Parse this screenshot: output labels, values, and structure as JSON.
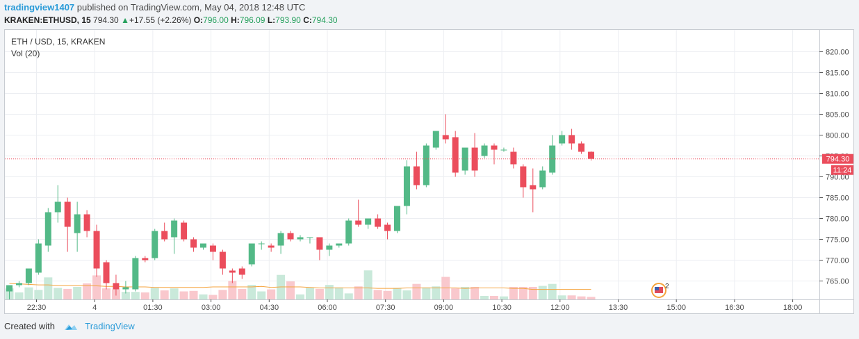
{
  "header": {
    "author": "tradingview1407",
    "published_text": "published on TradingView.com, May 04, 2018 12:48 UTC"
  },
  "quote": {
    "symbol": "KRAKEN:ETHUSD, 15",
    "last": "794.30",
    "change_arrow": "▲",
    "change": "+17.55 (+2.26%)",
    "o_label": "O:",
    "o": "796.00",
    "h_label": "H:",
    "h": "796.09",
    "l_label": "L:",
    "l": "793.90",
    "c_label": "C:",
    "c": "794.30"
  },
  "legend": {
    "pair": "ETH / USD, 15, KRAKEN",
    "volume": "Vol (20)"
  },
  "footer": {
    "created_with": "Created with",
    "brand": "TradingView"
  },
  "colors": {
    "up": "#53b987",
    "down": "#eb4d5c",
    "vol_up": "#c9e9da",
    "vol_down": "#f9c8cd",
    "ma": "#f5a33c",
    "grid": "#eceef2",
    "price_line": "#eb4d5c"
  },
  "chart_data": {
    "type": "candlestick",
    "interval": "15",
    "ylim": [
      761,
      823
    ],
    "y_ticks": [
      "765.00",
      "770.00",
      "775.00",
      "780.00",
      "785.00",
      "790.00",
      "795.00",
      "800.00",
      "805.00",
      "810.00",
      "815.00",
      "820.00"
    ],
    "x_ticks": [
      "22:30",
      "4",
      "01:30",
      "03:00",
      "04:30",
      "06:00",
      "07:30",
      "09:00",
      "10:30",
      "12:00",
      "13:30",
      "15:00",
      "16:30",
      "18:00"
    ],
    "last_price_label": "794.30",
    "countdown_label": "11:24",
    "event_badge": "2",
    "candles": [
      {
        "o": 762.5,
        "h": 764.0,
        "l": 760.5,
        "c": 764.0
      },
      {
        "o": 764.0,
        "h": 765.0,
        "l": 763.5,
        "c": 764.5
      },
      {
        "o": 764.5,
        "h": 768.0,
        "l": 764.0,
        "c": 768.0
      },
      {
        "o": 767.0,
        "h": 775.0,
        "l": 766.5,
        "c": 774.0
      },
      {
        "o": 773.5,
        "h": 782.5,
        "l": 772.0,
        "c": 781.5
      },
      {
        "o": 781.5,
        "h": 788.0,
        "l": 779.0,
        "c": 784.0
      },
      {
        "o": 784.0,
        "h": 785.0,
        "l": 772.0,
        "c": 778.0
      },
      {
        "o": 776.5,
        "h": 784.0,
        "l": 772.0,
        "c": 781.0
      },
      {
        "o": 781.0,
        "h": 782.0,
        "l": 775.5,
        "c": 777.0
      },
      {
        "o": 777.0,
        "h": 778.5,
        "l": 766.0,
        "c": 768.0
      },
      {
        "o": 769.5,
        "h": 770.0,
        "l": 763.0,
        "c": 764.5
      },
      {
        "o": 764.5,
        "h": 766.5,
        "l": 761.5,
        "c": 763.0
      },
      {
        "o": 763.0,
        "h": 765.0,
        "l": 762.0,
        "c": 763.5
      },
      {
        "o": 763.0,
        "h": 771.0,
        "l": 762.5,
        "c": 770.5
      },
      {
        "o": 770.5,
        "h": 771.0,
        "l": 769.5,
        "c": 770.0
      },
      {
        "o": 770.5,
        "h": 777.5,
        "l": 770.0,
        "c": 777.0
      },
      {
        "o": 777.0,
        "h": 779.0,
        "l": 774.5,
        "c": 775.0
      },
      {
        "o": 775.5,
        "h": 780.0,
        "l": 771.5,
        "c": 779.5
      },
      {
        "o": 779.0,
        "h": 779.5,
        "l": 774.5,
        "c": 775.0
      },
      {
        "o": 775.0,
        "h": 775.5,
        "l": 772.0,
        "c": 773.0
      },
      {
        "o": 773.0,
        "h": 774.0,
        "l": 772.5,
        "c": 774.0
      },
      {
        "o": 773.5,
        "h": 774.0,
        "l": 770.0,
        "c": 772.0
      },
      {
        "o": 772.0,
        "h": 772.5,
        "l": 766.5,
        "c": 768.0
      },
      {
        "o": 767.5,
        "h": 768.0,
        "l": 764.5,
        "c": 767.0
      },
      {
        "o": 768.0,
        "h": 768.5,
        "l": 765.5,
        "c": 766.5
      },
      {
        "o": 769.0,
        "h": 774.0,
        "l": 768.5,
        "c": 774.0
      },
      {
        "o": 774.0,
        "h": 774.5,
        "l": 772.5,
        "c": 774.0
      },
      {
        "o": 773.5,
        "h": 774.0,
        "l": 772.0,
        "c": 773.0
      },
      {
        "o": 773.5,
        "h": 777.0,
        "l": 771.5,
        "c": 776.5
      },
      {
        "o": 776.5,
        "h": 777.0,
        "l": 774.5,
        "c": 775.0
      },
      {
        "o": 775.0,
        "h": 776.0,
        "l": 774.5,
        "c": 775.5
      },
      {
        "o": 775.5,
        "h": 775.5,
        "l": 774.0,
        "c": 775.5
      },
      {
        "o": 775.5,
        "h": 775.5,
        "l": 770.0,
        "c": 772.5
      },
      {
        "o": 772.5,
        "h": 774.0,
        "l": 771.0,
        "c": 773.5
      },
      {
        "o": 773.5,
        "h": 774.0,
        "l": 773.0,
        "c": 774.0
      },
      {
        "o": 774.0,
        "h": 780.0,
        "l": 773.5,
        "c": 779.5
      },
      {
        "o": 779.5,
        "h": 784.5,
        "l": 778.0,
        "c": 778.5
      },
      {
        "o": 778.5,
        "h": 780.0,
        "l": 777.5,
        "c": 780.0
      },
      {
        "o": 780.0,
        "h": 781.0,
        "l": 777.5,
        "c": 778.0
      },
      {
        "o": 778.5,
        "h": 779.0,
        "l": 775.0,
        "c": 777.0
      },
      {
        "o": 777.0,
        "h": 783.0,
        "l": 776.5,
        "c": 783.0
      },
      {
        "o": 783.0,
        "h": 794.0,
        "l": 781.0,
        "c": 792.5
      },
      {
        "o": 792.5,
        "h": 796.0,
        "l": 787.0,
        "c": 788.0
      },
      {
        "o": 788.0,
        "h": 798.0,
        "l": 787.5,
        "c": 797.5
      },
      {
        "o": 797.0,
        "h": 801.0,
        "l": 796.5,
        "c": 801.0
      },
      {
        "o": 800.0,
        "h": 805.0,
        "l": 798.0,
        "c": 799.0
      },
      {
        "o": 799.5,
        "h": 801.0,
        "l": 790.0,
        "c": 791.0
      },
      {
        "o": 791.5,
        "h": 797.0,
        "l": 790.5,
        "c": 797.0
      },
      {
        "o": 797.0,
        "h": 800.5,
        "l": 790.0,
        "c": 791.5
      },
      {
        "o": 795.0,
        "h": 798.0,
        "l": 794.5,
        "c": 797.5
      },
      {
        "o": 797.5,
        "h": 798.0,
        "l": 793.0,
        "c": 796.5
      },
      {
        "o": 796.5,
        "h": 797.0,
        "l": 796.0,
        "c": 796.5
      },
      {
        "o": 796.0,
        "h": 797.0,
        "l": 792.0,
        "c": 793.0
      },
      {
        "o": 792.5,
        "h": 793.0,
        "l": 785.0,
        "c": 787.5
      },
      {
        "o": 788.0,
        "h": 792.0,
        "l": 781.5,
        "c": 787.0
      },
      {
        "o": 787.5,
        "h": 792.5,
        "l": 787.0,
        "c": 791.5
      },
      {
        "o": 791.0,
        "h": 800.0,
        "l": 790.5,
        "c": 797.5
      },
      {
        "o": 798.0,
        "h": 801.0,
        "l": 797.5,
        "c": 800.0
      },
      {
        "o": 800.0,
        "h": 801.5,
        "l": 796.5,
        "c": 798.0
      },
      {
        "o": 798.0,
        "h": 798.5,
        "l": 795.5,
        "c": 796.0
      },
      {
        "o": 796.0,
        "h": 796.1,
        "l": 793.9,
        "c": 794.3
      }
    ],
    "volume": [
      22,
      14,
      24,
      19,
      44,
      23,
      21,
      25,
      32,
      48,
      22,
      20,
      15,
      15,
      14,
      23,
      18,
      22,
      16,
      17,
      10,
      9,
      19,
      37,
      21,
      29,
      16,
      20,
      49,
      36,
      10,
      23,
      21,
      29,
      24,
      12,
      26,
      58,
      19,
      17,
      23,
      18,
      31,
      24,
      26,
      45,
      22,
      25,
      25,
      7,
      7,
      6,
      25,
      25,
      25,
      27,
      31,
      8,
      8,
      6,
      5
    ],
    "volume_ma": [
      32,
      31,
      30,
      29,
      29,
      28,
      28,
      28,
      27,
      27,
      26,
      26,
      25,
      25,
      25,
      24,
      24,
      24,
      24,
      24,
      24,
      25,
      25,
      25,
      25,
      25,
      26,
      24,
      25,
      25,
      25,
      24,
      23,
      23,
      23,
      23,
      23,
      23,
      22,
      22,
      22,
      23,
      23,
      23,
      23,
      23,
      23,
      22,
      23,
      23,
      23,
      23,
      22,
      22,
      20,
      20,
      20,
      20,
      20,
      20,
      20
    ]
  }
}
